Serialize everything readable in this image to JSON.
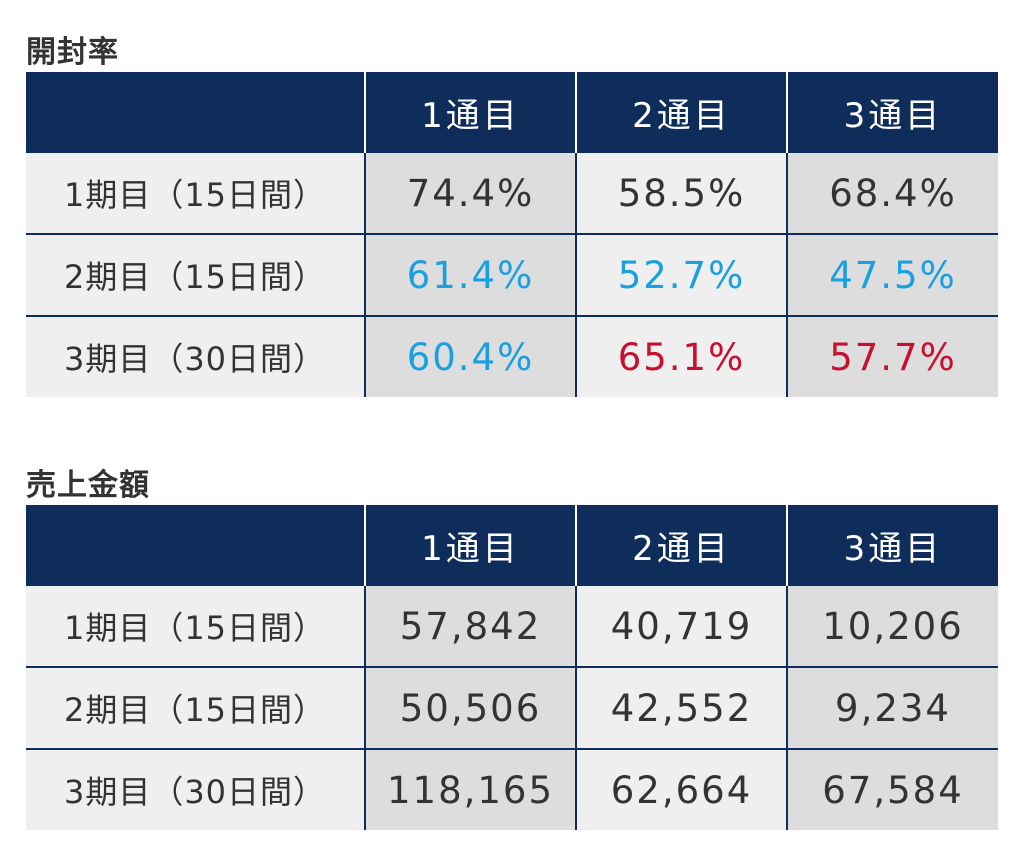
{
  "open_rate": {
    "title": "開封率",
    "headers": [
      "",
      "1通目",
      "2通目",
      "3通目"
    ],
    "rows": [
      {
        "label": "1期目（15日間）",
        "values": [
          "74.4%",
          "58.5%",
          "68.4%"
        ],
        "colors": [
          "plain",
          "plain",
          "plain"
        ]
      },
      {
        "label": "2期目（15日間）",
        "values": [
          "61.4%",
          "52.7%",
          "47.5%"
        ],
        "colors": [
          "blue",
          "blue",
          "blue"
        ]
      },
      {
        "label": "3期目（30日間）",
        "values": [
          "60.4%",
          "65.1%",
          "57.7%"
        ],
        "colors": [
          "blue",
          "red",
          "red"
        ]
      }
    ]
  },
  "sales": {
    "title": "売上金額",
    "headers": [
      "",
      "1通目",
      "2通目",
      "3通目"
    ],
    "rows": [
      {
        "label": "1期目（15日間）",
        "values": [
          "57,842",
          "40,719",
          "10,206"
        ]
      },
      {
        "label": "2期目（15日間）",
        "values": [
          "50,506",
          "42,552",
          "9,234"
        ]
      },
      {
        "label": "3期目（30日間）",
        "values": [
          "118,165",
          "62,664",
          "67,584"
        ]
      }
    ]
  },
  "colors": {
    "header_bg": "#0e2d5b",
    "cell_dark": "#dddddd",
    "cell_light": "#efefef",
    "text": "#333333",
    "blue": "#1a9fe0",
    "red": "#c8102e"
  }
}
